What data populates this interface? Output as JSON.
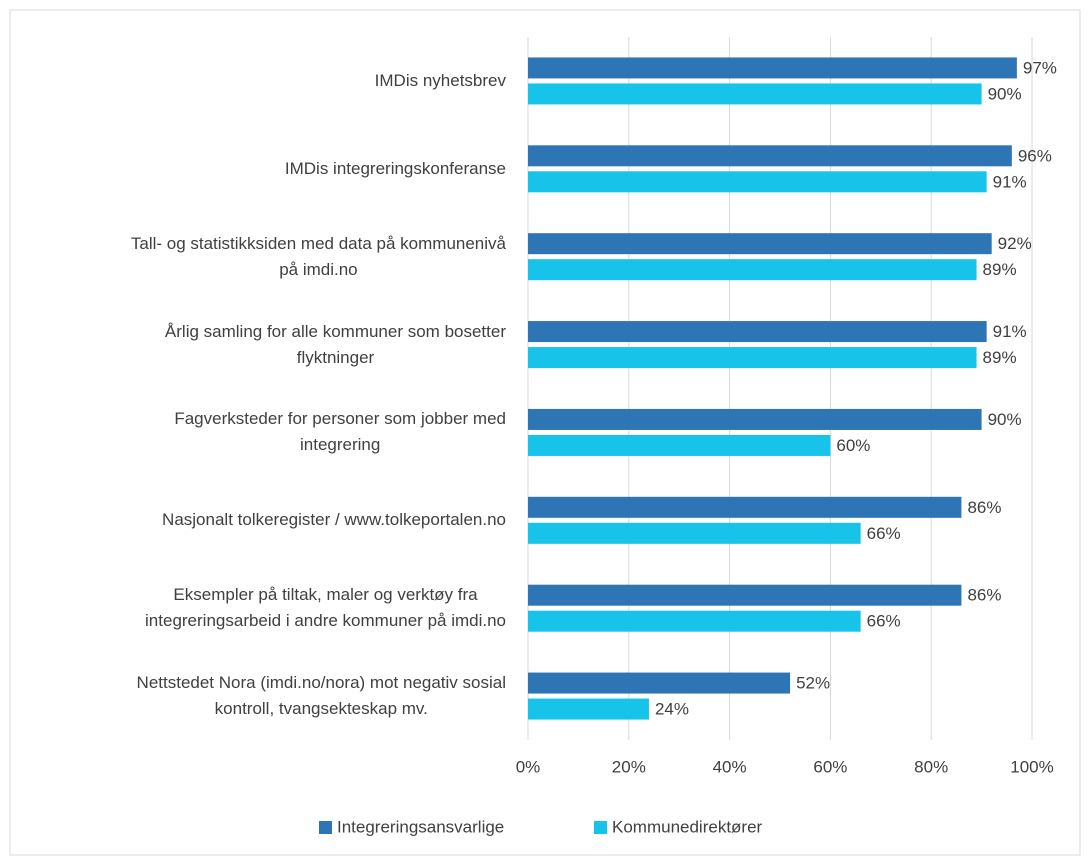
{
  "chart_data": {
    "type": "bar",
    "orientation": "horizontal",
    "categories": [
      "IMDis nyhetsbrev",
      "IMDis integreringskonferanse",
      "Tall- og statistikksiden med data på kommunenivå\npå imdi.no",
      "Årlig samling for alle kommuner som bosetter\nflyktninger",
      "Fagverksteder for personer som jobber med\nintegrering",
      "Nasjonalt tolkeregister / www.tolkeportalen.no",
      "Eksempler på tiltak, maler og verktøy fra\nintegreringsarbeid i andre kommuner på imdi.no",
      "Nettstedet Nora (imdi.no/nora) mot negativ sosial\nkontroll, tvangsekteskap mv."
    ],
    "series": [
      {
        "name": "Integreringsansvarlige",
        "color": "#2e75b6",
        "values": [
          97,
          96,
          92,
          91,
          90,
          86,
          86,
          52
        ],
        "value_labels": [
          "97%",
          "96%",
          "92%",
          "91%",
          "90%",
          "86%",
          "86%",
          "52%"
        ]
      },
      {
        "name": "Kommunedirektører",
        "color": "#17c3e9",
        "values": [
          90,
          91,
          89,
          89,
          60,
          66,
          66,
          24
        ],
        "value_labels": [
          "90%",
          "91%",
          "89%",
          "89%",
          "60%",
          "66%",
          "66%",
          "24%"
        ]
      }
    ],
    "xlim": [
      0,
      100
    ],
    "xticks": [
      {
        "value": 0,
        "label": "0%"
      },
      {
        "value": 20,
        "label": "20%"
      },
      {
        "value": 40,
        "label": "40%"
      },
      {
        "value": 60,
        "label": "60%"
      },
      {
        "value": 80,
        "label": "80%"
      },
      {
        "value": 100,
        "label": "100%"
      }
    ],
    "grid": true,
    "legend": "bottom"
  }
}
